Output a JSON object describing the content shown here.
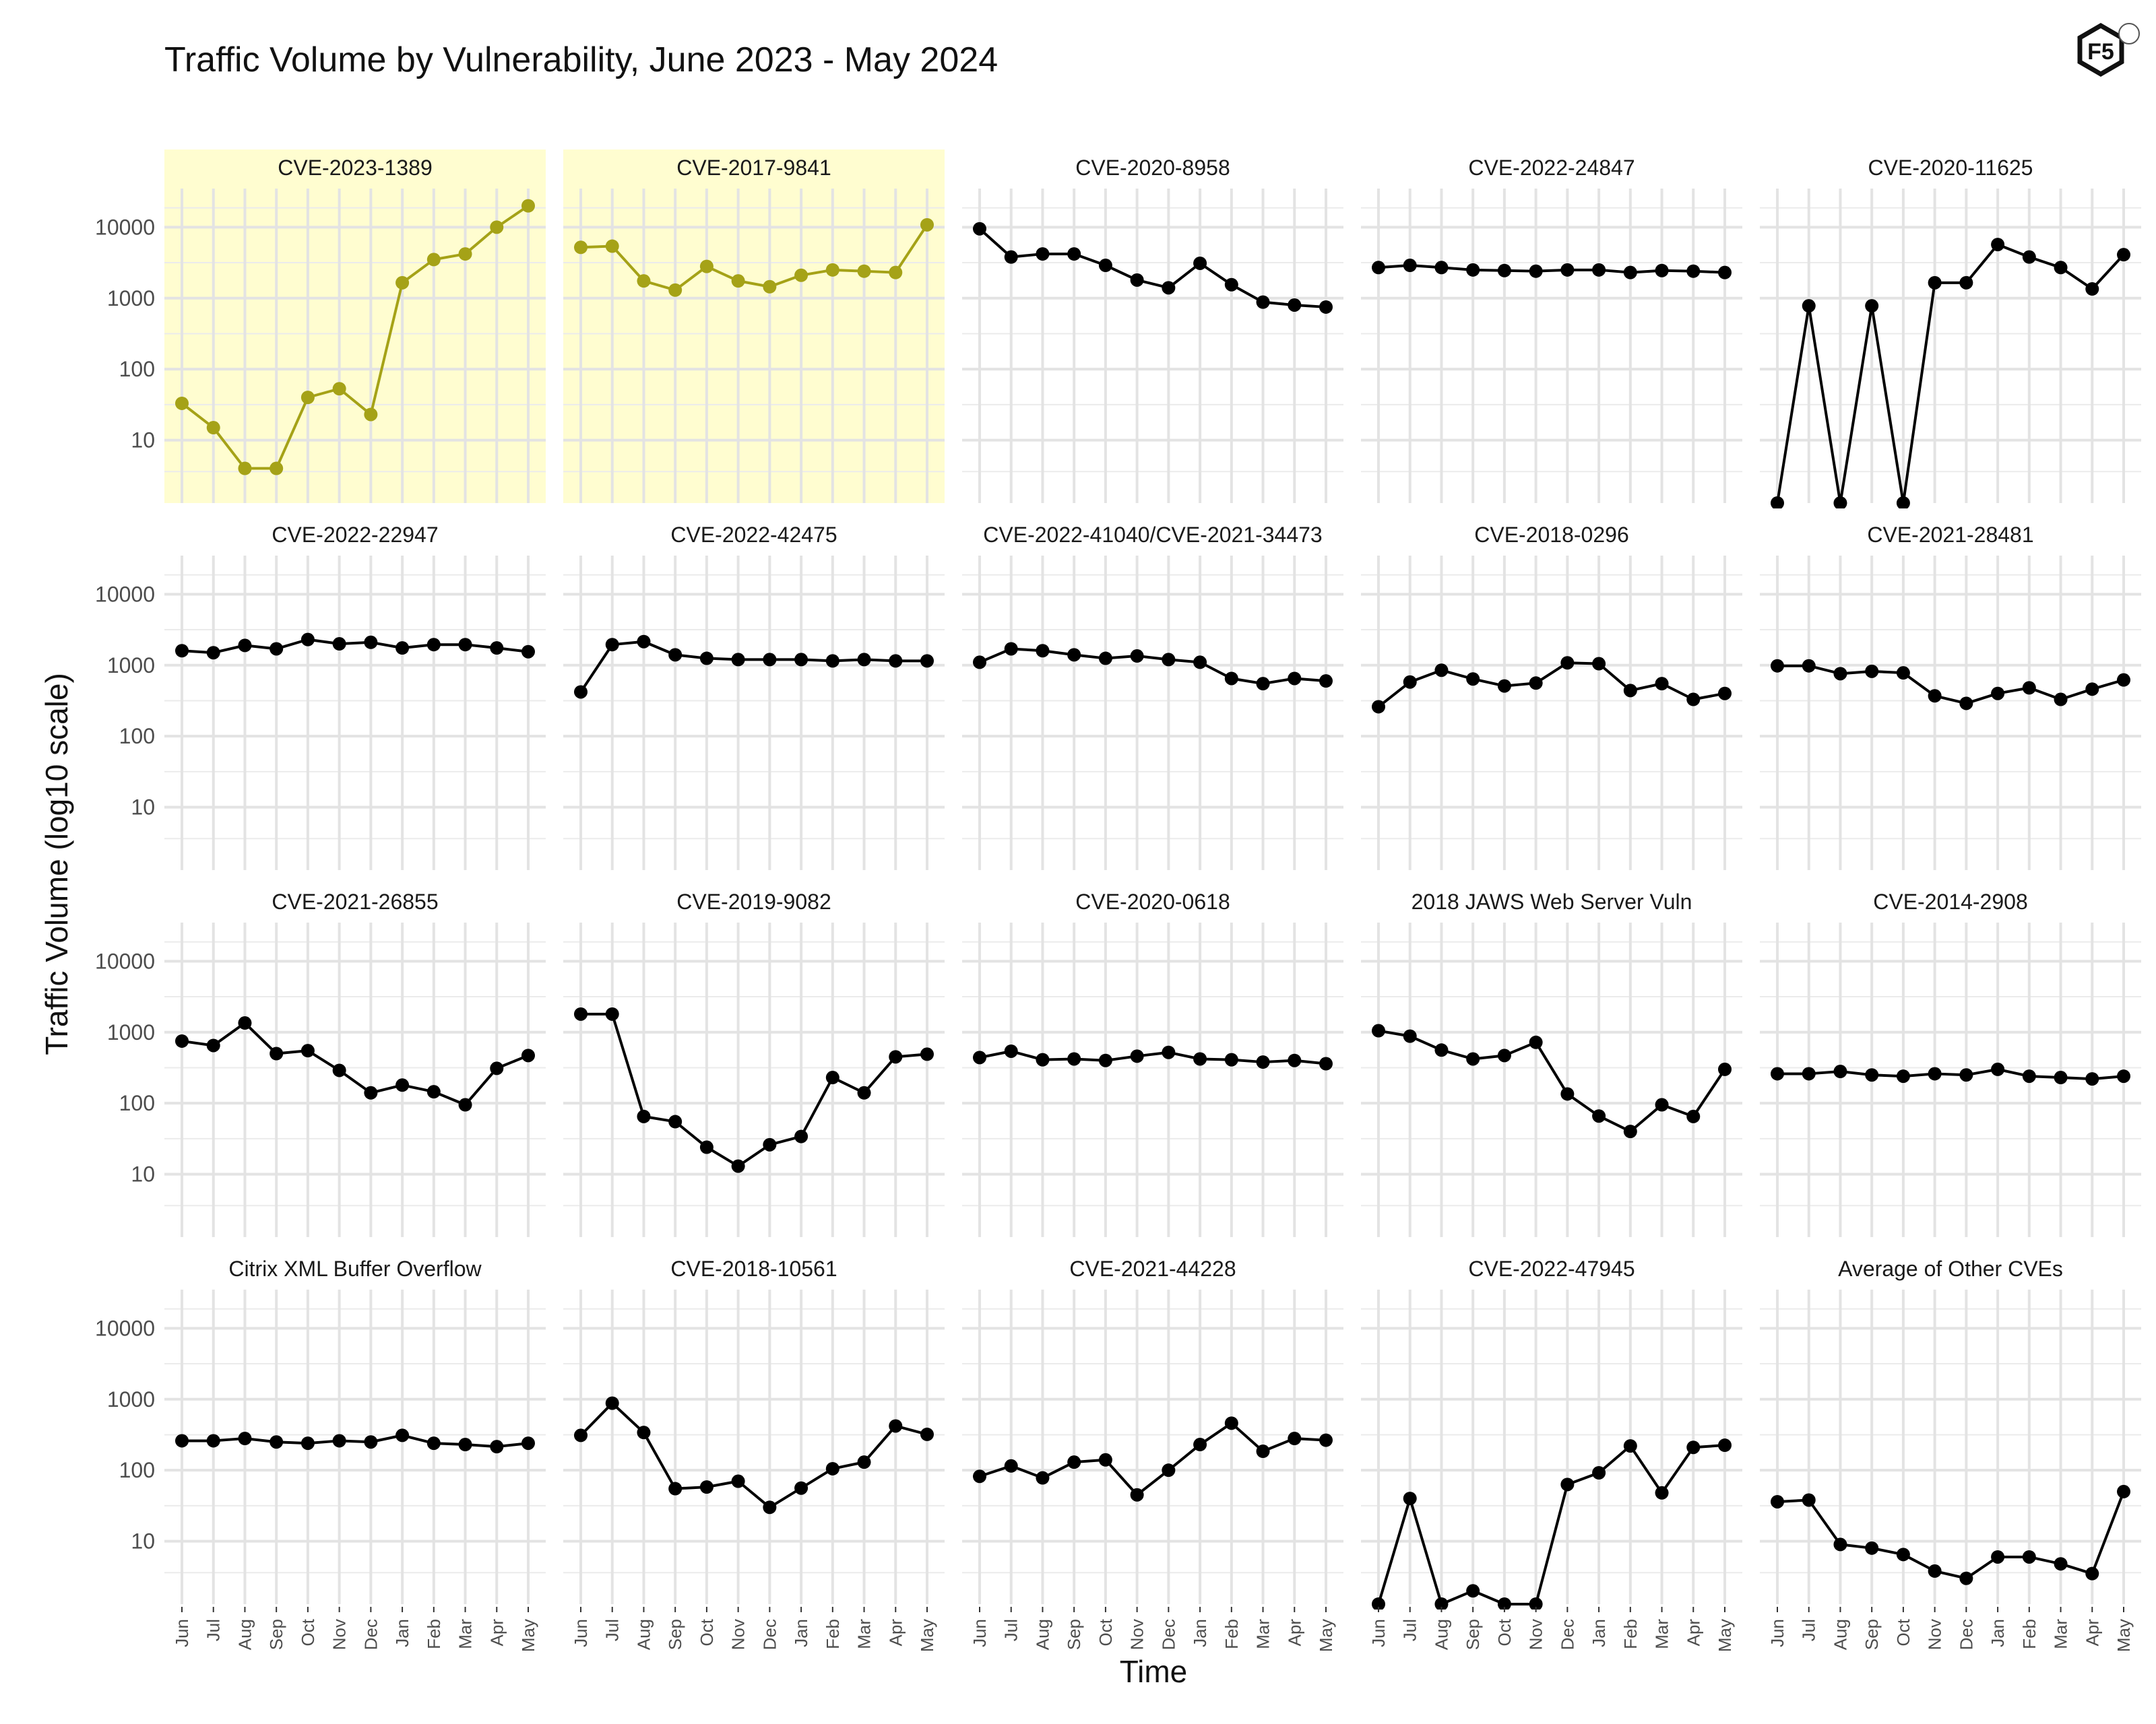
{
  "chart_data": {
    "type": "line",
    "title": "Traffic Volume by Vulnerability, June 2023 - May 2024",
    "xlabel": "Time",
    "ylabel": "Traffic Volume (log10 scale)",
    "y_scale": "log10",
    "ylim": [
      1.3,
      35000
    ],
    "y_ticks": [
      "10",
      "100",
      "1000",
      "10000"
    ],
    "x": [
      "Jun",
      "Jul",
      "Aug",
      "Sep",
      "Oct",
      "Nov",
      "Dec",
      "Jan",
      "Feb",
      "Mar",
      "Apr",
      "May"
    ],
    "grid": true,
    "highlight_color": "#a5a217",
    "highlight_fill": "#fffdd0",
    "default_color": "#000000",
    "logo_text": "F5",
    "panels": [
      {
        "name": "CVE-2023-1389",
        "highlight": true,
        "values": [
          33,
          15,
          4,
          4,
          40,
          53,
          23,
          1650,
          3500,
          4200,
          10000,
          20000
        ]
      },
      {
        "name": "CVE-2017-9841",
        "highlight": true,
        "values": [
          5200,
          5400,
          1750,
          1300,
          2800,
          1750,
          1450,
          2100,
          2500,
          2400,
          2300,
          10800
        ]
      },
      {
        "name": "CVE-2020-8958",
        "highlight": false,
        "values": [
          9500,
          3800,
          4200,
          4200,
          2900,
          1800,
          1400,
          3100,
          1550,
          880,
          800,
          750
        ]
      },
      {
        "name": "CVE-2022-24847",
        "highlight": false,
        "values": [
          2700,
          2900,
          2700,
          2500,
          2450,
          2400,
          2500,
          2500,
          2300,
          2450,
          2400,
          2300
        ]
      },
      {
        "name": "CVE-2020-11625",
        "highlight": false,
        "values": [
          1,
          780,
          1,
          780,
          1,
          1650,
          1650,
          5700,
          3800,
          2700,
          1350,
          4100
        ]
      },
      {
        "name": "CVE-2022-22947",
        "highlight": false,
        "values": [
          1600,
          1500,
          1900,
          1700,
          2300,
          2000,
          2100,
          1750,
          1950,
          1950,
          1750,
          1550
        ]
      },
      {
        "name": "CVE-2022-42475",
        "highlight": false,
        "values": [
          420,
          1950,
          2150,
          1400,
          1250,
          1200,
          1200,
          1200,
          1150,
          1200,
          1150,
          1150
        ]
      },
      {
        "name": "CVE-2022-41040/CVE-2021-34473",
        "highlight": false,
        "values": [
          1100,
          1700,
          1600,
          1400,
          1250,
          1350,
          1200,
          1100,
          650,
          550,
          650,
          600
        ]
      },
      {
        "name": "CVE-2018-0296",
        "highlight": false,
        "values": [
          260,
          580,
          850,
          640,
          510,
          560,
          1080,
          1050,
          440,
          550,
          330,
          400
        ]
      },
      {
        "name": "CVE-2021-28481",
        "highlight": false,
        "values": [
          980,
          980,
          760,
          820,
          780,
          370,
          290,
          400,
          480,
          330,
          460,
          620
        ]
      },
      {
        "name": "CVE-2021-26855",
        "highlight": false,
        "values": [
          750,
          650,
          1350,
          500,
          550,
          290,
          140,
          180,
          145,
          95,
          310,
          470
        ]
      },
      {
        "name": "CVE-2019-9082",
        "highlight": false,
        "values": [
          1800,
          1800,
          65,
          55,
          24,
          13,
          26,
          34,
          230,
          140,
          450,
          490
        ]
      },
      {
        "name": "CVE-2020-0618",
        "highlight": false,
        "values": [
          440,
          540,
          410,
          420,
          400,
          460,
          520,
          420,
          410,
          380,
          400,
          360
        ]
      },
      {
        "name": "2018 JAWS Web Server Vuln",
        "highlight": false,
        "values": [
          1050,
          880,
          560,
          420,
          470,
          720,
          135,
          66,
          40,
          95,
          65,
          300
        ]
      },
      {
        "name": "CVE-2014-2908",
        "highlight": false,
        "values": [
          260,
          260,
          280,
          250,
          240,
          260,
          250,
          300,
          240,
          230,
          220,
          240
        ]
      },
      {
        "name": "Citrix XML Buffer Overflow",
        "highlight": false,
        "values": [
          260,
          260,
          280,
          250,
          240,
          260,
          250,
          310,
          240,
          230,
          215,
          240
        ]
      },
      {
        "name": "CVE-2018-10561",
        "highlight": false,
        "values": [
          310,
          880,
          340,
          55,
          58,
          70,
          30,
          56,
          105,
          130,
          420,
          320
        ]
      },
      {
        "name": "CVE-2021-44228",
        "highlight": false,
        "values": [
          82,
          115,
          78,
          130,
          140,
          45,
          100,
          230,
          460,
          185,
          280,
          265
        ]
      },
      {
        "name": "CVE-2022-47945",
        "highlight": false,
        "values": [
          1,
          40,
          1,
          2,
          1,
          1,
          63,
          92,
          220,
          48,
          210,
          225
        ]
      },
      {
        "name": "Average of Other CVEs",
        "highlight": false,
        "values": [
          36,
          38,
          9,
          8,
          6.5,
          3.8,
          3,
          6,
          6,
          4.8,
          3.5,
          50
        ]
      }
    ]
  }
}
